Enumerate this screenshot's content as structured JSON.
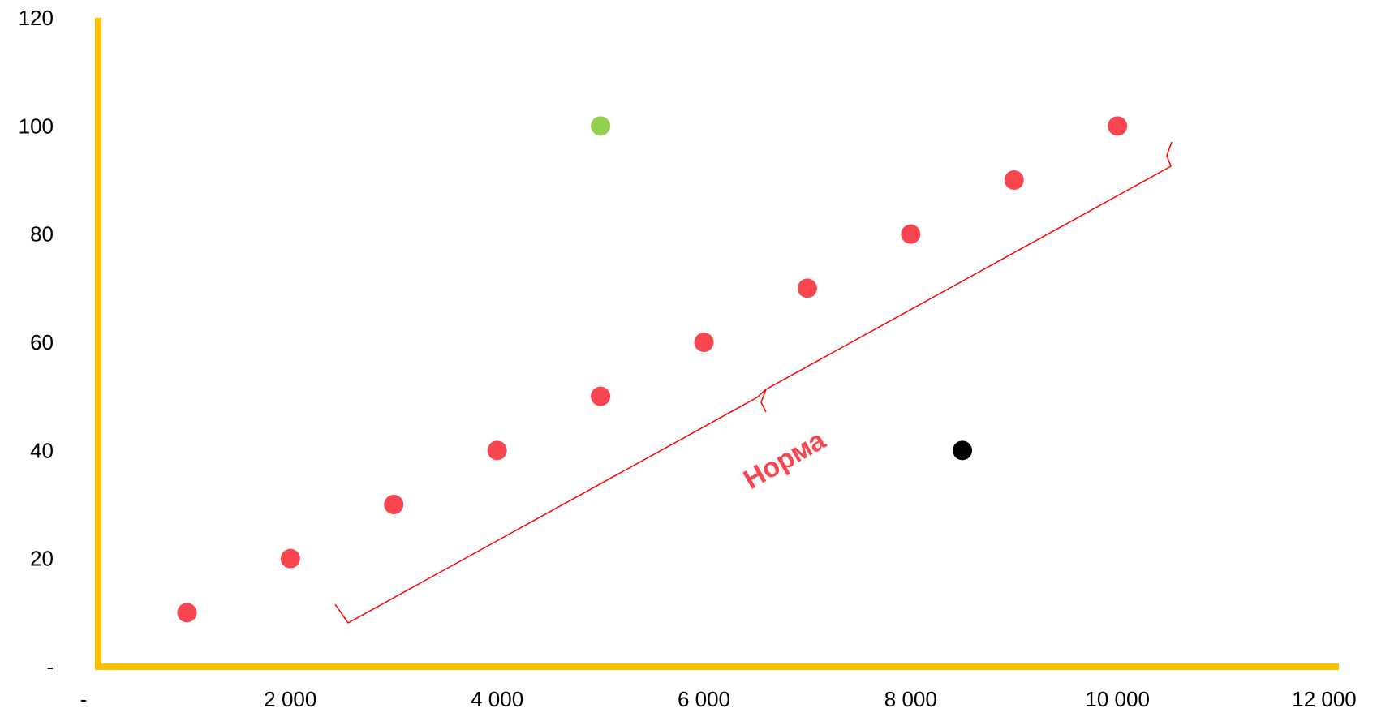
{
  "colors": {
    "axis": "#FFC000",
    "series_main": "#F84651",
    "point_green": "#92D050",
    "point_black": "#000000",
    "annotation": "#F84651",
    "bracket": "#FF0000"
  },
  "chart_data": {
    "type": "scatter",
    "title": "",
    "xlabel": "",
    "ylabel": "",
    "xlim": [
      0,
      12000
    ],
    "ylim": [
      0,
      120
    ],
    "x_ticks": [
      0,
      2000,
      4000,
      6000,
      8000,
      10000,
      12000
    ],
    "x_tick_labels": [
      "-",
      "2 000",
      "4 000",
      "6 000",
      "8 000",
      "10 000",
      "12 000"
    ],
    "y_ticks": [
      0,
      20,
      40,
      60,
      80,
      100,
      120
    ],
    "y_tick_labels": [
      "-",
      "20",
      "40",
      "60",
      "80",
      "100",
      "120"
    ],
    "grid": false,
    "legend": "none",
    "series": [
      {
        "color": "#F84651",
        "points": [
          {
            "x": 1000,
            "y": 10
          },
          {
            "x": 2000,
            "y": 20
          },
          {
            "x": 3000,
            "y": 30
          },
          {
            "x": 4000,
            "y": 40
          },
          {
            "x": 5000,
            "y": 50
          },
          {
            "x": 6000,
            "y": 60
          },
          {
            "x": 7000,
            "y": 70
          },
          {
            "x": 8000,
            "y": 80
          },
          {
            "x": 9000,
            "y": 90
          },
          {
            "x": 10000,
            "y": 100
          }
        ]
      },
      {
        "color": "#92D050",
        "points": [
          {
            "x": 5000,
            "y": 100
          }
        ]
      },
      {
        "color": "#000000",
        "points": [
          {
            "x": 8500,
            "y": 40
          }
        ]
      }
    ],
    "annotations": [
      {
        "text": "Норма",
        "color": "#F84651"
      }
    ]
  }
}
